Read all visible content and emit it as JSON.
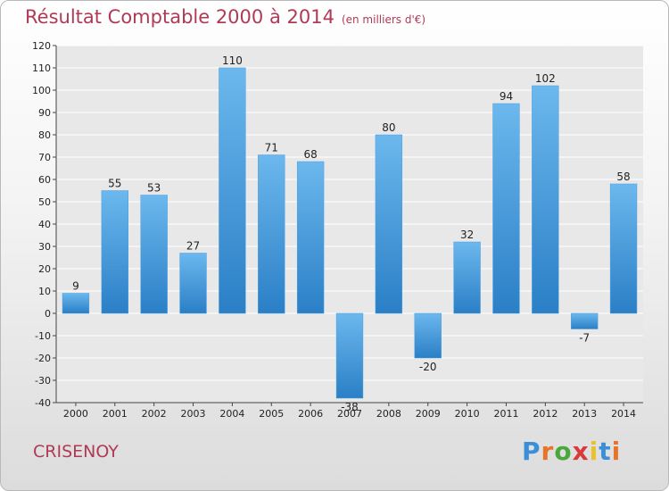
{
  "header": {
    "title": "Résultat Comptable 2000 à 2014",
    "subtitle": "(en milliers d'€)"
  },
  "footer": {
    "commune": "CRISENOY",
    "logo_text": "Proxiti",
    "logo_colors": [
      "#3a8fd8",
      "#e8742a",
      "#4aa83a",
      "#d93a3a",
      "#e8c22a",
      "#3a8fd8",
      "#e8742a"
    ]
  },
  "chart_data": {
    "type": "bar",
    "title": "Résultat Comptable 2000 à 2014",
    "subtitle": "(en milliers d'€)",
    "categories": [
      "2000",
      "2001",
      "2002",
      "2003",
      "2004",
      "2005",
      "2006",
      "2007",
      "2008",
      "2009",
      "2010",
      "2011",
      "2012",
      "2013",
      "2014"
    ],
    "values": [
      9,
      55,
      53,
      27,
      110,
      71,
      68,
      -38,
      80,
      -20,
      32,
      94,
      102,
      -7,
      58
    ],
    "ylim": [
      -40,
      120
    ],
    "yticks": [
      -40,
      -30,
      -20,
      -10,
      0,
      10,
      20,
      30,
      40,
      50,
      60,
      70,
      80,
      90,
      100,
      110,
      120
    ],
    "grid": true,
    "bar_color_light": "#6cb8ee",
    "bar_color_dark": "#2a7fc6"
  }
}
